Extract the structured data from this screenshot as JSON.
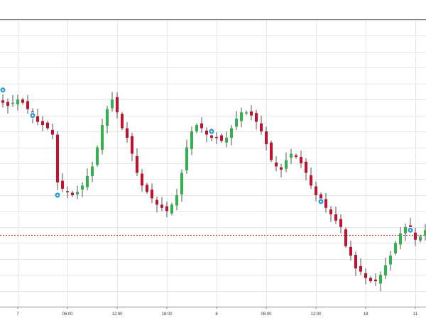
{
  "chart_data": {
    "type": "candlestick",
    "grid": true,
    "colors": {
      "up": "#2fb34a",
      "down": "#c8102e",
      "wick": "#555555",
      "grid": "#e6e6e6",
      "marker": "#1e9be0",
      "price_line": "#e03030",
      "axis": "#888888"
    },
    "x_ticks": [
      {
        "label": "7",
        "t": 4
      },
      {
        "label": "06:00",
        "t": 14
      },
      {
        "label": "12:00",
        "t": 24
      },
      {
        "label": "18:00",
        "t": 34
      },
      {
        "label": "8",
        "t": 44
      },
      {
        "label": "06:00",
        "t": 54
      },
      {
        "label": "12:00",
        "t": 64
      },
      {
        "label": "18",
        "t": 74
      },
      {
        "label": "11",
        "t": 84
      }
    ],
    "current_price": 42.5,
    "markers": [
      {
        "t": 1,
        "y": 88
      },
      {
        "t": 7,
        "y": 80
      },
      {
        "t": 12,
        "y": 55
      },
      {
        "t": 43,
        "y": 75
      },
      {
        "t": 65,
        "y": 53
      },
      {
        "t": 83,
        "y": 44
      }
    ],
    "close": [
      85,
      84,
      83,
      84,
      85,
      84,
      82,
      80,
      78,
      77,
      76,
      74,
      59,
      57,
      56,
      55,
      56,
      58,
      61,
      64,
      70,
      77,
      82,
      85,
      81,
      76,
      73,
      68,
      62,
      58,
      56,
      54,
      52,
      51,
      50,
      52,
      55,
      62,
      70,
      75,
      77,
      76,
      74,
      73,
      73,
      72,
      73,
      76,
      79,
      81,
      81,
      80,
      78,
      75,
      71,
      66,
      64,
      63,
      66,
      68,
      67,
      65,
      62,
      58,
      55,
      53,
      51,
      49,
      47,
      45,
      39,
      36,
      32,
      31,
      29,
      28,
      28,
      30,
      33,
      36,
      40,
      43,
      45,
      44,
      41,
      42,
      44,
      47
    ]
  }
}
